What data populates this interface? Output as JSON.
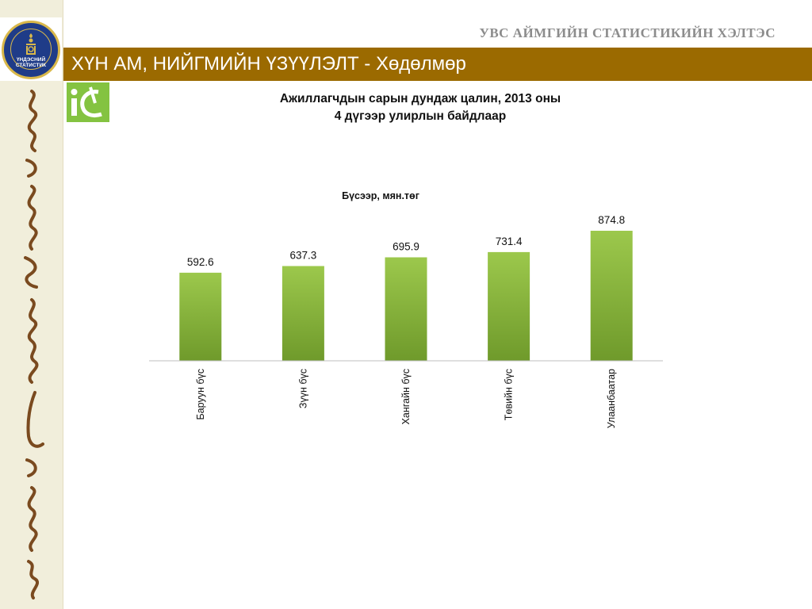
{
  "header": {
    "org_title": "УВС АЙМГИЙН СТАТИСТИКИЙН ХЭЛТЭС",
    "banner_title": "ХҮН АМ, НИЙГМИЙН ҮЗҮҮЛЭЛТ - Хөдөлмөр",
    "logo_line1": "ҮНДЭСНИЙ",
    "logo_line2": "СТАТИСТИК"
  },
  "colors": {
    "banner": "#9b6a00",
    "sidebar": "#f1eedb",
    "bar_top": "#9cc84c",
    "bar_bottom": "#6f9a2b",
    "ie_logo": "#84c341"
  },
  "chart_data": {
    "type": "bar",
    "title_line1": "Ажиллагчдын сарын дундаж цалин, 2013 оны",
    "title_line2": "4 дүгээр улирлын байдлаар",
    "subtitle": "Бүсээр, мян.төг",
    "categories": [
      "Баруун бүс",
      "Зүүн бүс",
      "Хангайн бүс",
      "Төвийн бүс",
      "Улаанбаатар"
    ],
    "values": [
      592.6,
      637.3,
      695.9,
      731.4,
      874.8
    ],
    "value_labels": [
      "592.6",
      "637.3",
      "695.9",
      "731.4",
      "874.8"
    ],
    "grid": false,
    "legend": "none"
  }
}
